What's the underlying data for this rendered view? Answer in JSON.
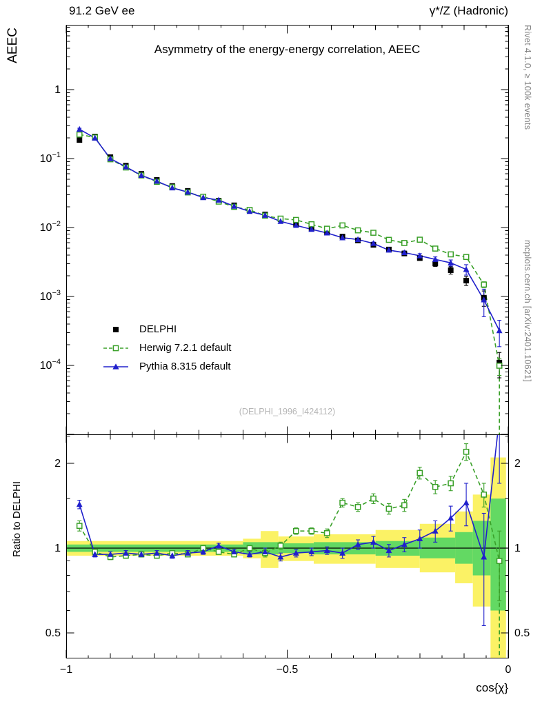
{
  "header": {
    "left": "91.2 GeV ee",
    "right": "γ*/Z (Hadronic)"
  },
  "plot": {
    "title": "Asymmetry of the energy-energy correlation, AEEC",
    "ylabel": "AEEC",
    "ratio_ylabel": "Ratio to DELPHI",
    "xlabel": "cos{χ}",
    "watermark": "(DELPHI_1996_I424112)"
  },
  "side_texts": {
    "top": "Rivet 4.1.0, ≥ 100k events",
    "bottom": "mcplots.cern.ch [arXiv:2401.10621]"
  },
  "legend": {
    "items": [
      {
        "label": "DELPHI",
        "marker": "filled-square",
        "color": "#000000",
        "line": "none"
      },
      {
        "label": "Herwig 7.2.1 default",
        "marker": "open-square",
        "color": "#3aa029",
        "line": "dashed"
      },
      {
        "label": "Pythia 8.315 default",
        "marker": "filled-triangle",
        "color": "#2020cc",
        "line": "solid"
      }
    ]
  },
  "colors": {
    "delphi": "#000000",
    "herwig": "#3aa029",
    "pythia": "#2020cc",
    "band_outer": "#fbf265",
    "band_inner": "#63d963",
    "ref_line": "#000000",
    "watermark": "#b5b5b5",
    "side_text": "#808080"
  },
  "chart_data": {
    "type": "line",
    "title": "Asymmetry of the energy-energy correlation, AEEC",
    "xlabel": "cos{χ}",
    "ylabel": "AEEC",
    "ratio_label": "Ratio to DELPHI",
    "xlim": [
      -1,
      0
    ],
    "ylim_main": [
      1e-05,
      8.7
    ],
    "ylim_ratio": [
      0.4,
      2.55
    ],
    "y_scale": "log",
    "x": [
      -0.97,
      -0.935,
      -0.9,
      -0.865,
      -0.83,
      -0.795,
      -0.76,
      -0.725,
      -0.69,
      -0.655,
      -0.62,
      -0.585,
      -0.55,
      -0.515,
      -0.48,
      -0.445,
      -0.41,
      -0.375,
      -0.34,
      -0.305,
      -0.27,
      -0.235,
      -0.2,
      -0.165,
      -0.13,
      -0.095,
      -0.055,
      -0.02
    ],
    "series": [
      {
        "name": "DELPHI",
        "role": "data",
        "values": [
          0.186,
          0.209,
          0.105,
          0.079,
          0.06,
          0.049,
          0.04,
          0.034,
          0.028,
          0.0245,
          0.021,
          0.018,
          0.0155,
          0.0132,
          0.0112,
          0.0097,
          0.0085,
          0.0074,
          0.0065,
          0.0056,
          0.0048,
          0.0042,
          0.0036,
          0.003,
          0.0024,
          0.0017,
          0.00096,
          0.00011
        ],
        "frac_err": [
          0.04,
          0.04,
          0.04,
          0.04,
          0.04,
          0.04,
          0.04,
          0.04,
          0.04,
          0.04,
          0.04,
          0.04,
          0.04,
          0.04,
          0.04,
          0.04,
          0.04,
          0.04,
          0.04,
          0.04,
          0.05,
          0.06,
          0.07,
          0.09,
          0.12,
          0.15,
          0.25,
          0.4
        ]
      },
      {
        "name": "Herwig 7.2.1 default",
        "role": "mc",
        "ratio_to_data": [
          1.2,
          0.97,
          0.93,
          0.94,
          0.95,
          0.94,
          0.96,
          0.95,
          1.0,
          0.97,
          0.95,
          1.0,
          0.96,
          1.02,
          1.15,
          1.15,
          1.13,
          1.45,
          1.4,
          1.5,
          1.38,
          1.42,
          1.85,
          1.65,
          1.7,
          2.2,
          1.55,
          0.9
        ],
        "ratio_err": [
          0.05,
          0.02,
          0.02,
          0.02,
          0.02,
          0.02,
          0.02,
          0.02,
          0.02,
          0.02,
          0.02,
          0.02,
          0.03,
          0.03,
          0.03,
          0.03,
          0.04,
          0.05,
          0.05,
          0.06,
          0.06,
          0.07,
          0.09,
          0.09,
          0.1,
          0.15,
          0.15,
          0.25
        ]
      },
      {
        "name": "Pythia 8.315 default",
        "role": "mc",
        "ratio_to_data": [
          1.43,
          0.95,
          0.95,
          0.96,
          0.95,
          0.96,
          0.94,
          0.96,
          0.97,
          1.02,
          0.97,
          0.95,
          0.97,
          0.93,
          0.96,
          0.97,
          0.98,
          0.96,
          1.03,
          1.05,
          0.98,
          1.03,
          1.08,
          1.15,
          1.28,
          1.45,
          0.93,
          2.9
        ],
        "ratio_err": [
          0.05,
          0.02,
          0.02,
          0.02,
          0.02,
          0.02,
          0.02,
          0.02,
          0.02,
          0.02,
          0.02,
          0.02,
          0.03,
          0.03,
          0.03,
          0.03,
          0.03,
          0.04,
          0.04,
          0.05,
          0.05,
          0.06,
          0.08,
          0.1,
          0.13,
          0.25,
          0.4,
          1.2
        ]
      }
    ],
    "x_ticks": [
      {
        "v": -1,
        "label": "−1"
      },
      {
        "v": -0.5,
        "label": "−0.5"
      },
      {
        "v": 0,
        "label": "0"
      }
    ],
    "y_ticks_main": [
      {
        "v": 1,
        "label": "1"
      },
      {
        "v": 0.1,
        "base": "10",
        "exp": "−1"
      },
      {
        "v": 0.01,
        "base": "10",
        "exp": "−2"
      },
      {
        "v": 0.001,
        "base": "10",
        "exp": "−3"
      },
      {
        "v": 0.0001,
        "base": "10",
        "exp": "−4"
      }
    ],
    "y_ticks_ratio": [
      {
        "v": 2,
        "label": "2"
      },
      {
        "v": 1,
        "label": "1"
      },
      {
        "v": 0.5,
        "label": "0.5"
      }
    ],
    "bands": {
      "outer": [
        [
          -1,
          -0.6,
          0.94,
          1.06
        ],
        [
          -0.6,
          -0.56,
          0.92,
          1.08
        ],
        [
          -0.56,
          -0.52,
          0.85,
          1.15
        ],
        [
          -0.52,
          -0.44,
          0.9,
          1.1
        ],
        [
          -0.44,
          -0.3,
          0.88,
          1.12
        ],
        [
          -0.3,
          -0.2,
          0.85,
          1.16
        ],
        [
          -0.2,
          -0.12,
          0.82,
          1.22
        ],
        [
          -0.12,
          -0.08,
          0.75,
          1.35
        ],
        [
          -0.08,
          -0.04,
          0.62,
          1.55
        ],
        [
          -0.04,
          -0.005,
          0.35,
          2.1
        ]
      ],
      "inner": [
        [
          -1,
          -0.6,
          0.97,
          1.03
        ],
        [
          -0.6,
          -0.52,
          0.95,
          1.05
        ],
        [
          -0.52,
          -0.44,
          0.96,
          1.04
        ],
        [
          -0.44,
          -0.3,
          0.95,
          1.05
        ],
        [
          -0.3,
          -0.2,
          0.94,
          1.06
        ],
        [
          -0.2,
          -0.12,
          0.92,
          1.09
        ],
        [
          -0.12,
          -0.08,
          0.88,
          1.14
        ],
        [
          -0.08,
          -0.04,
          0.8,
          1.25
        ],
        [
          -0.04,
          -0.005,
          0.6,
          1.5
        ]
      ]
    },
    "legend_position": "inside-left-lower",
    "grid": false
  }
}
